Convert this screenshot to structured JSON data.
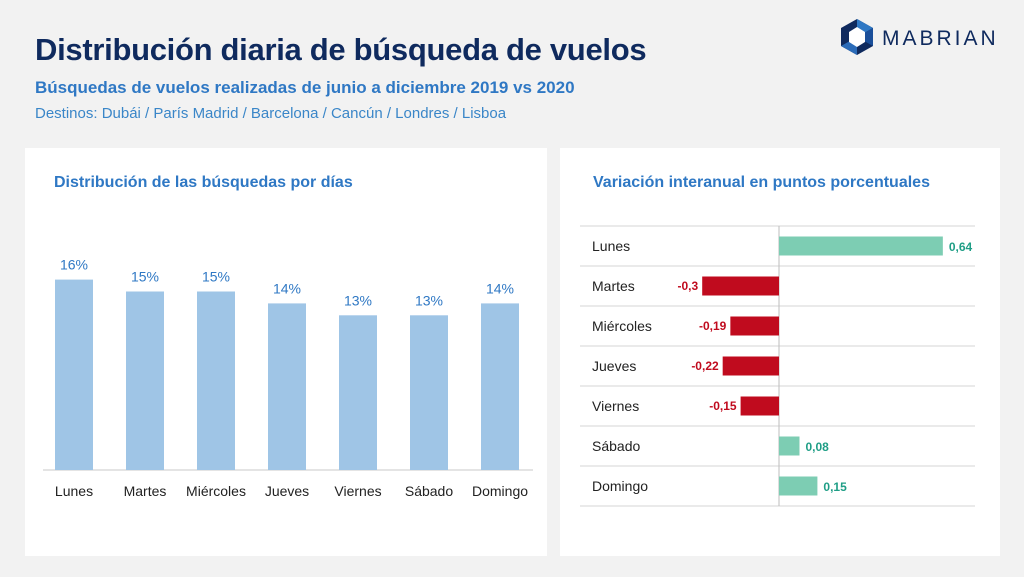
{
  "header": {
    "title": "Distribución diaria de búsqueda de vuelos",
    "subtitle": "Búsquedas de vuelos realizadas de junio a diciembre 2019 vs 2020",
    "destinations": "Destinos: Dubái / París Madrid / Barcelona / Cancún / Londres / Lisboa"
  },
  "logo": {
    "text": "MABRIAN",
    "icon": "hexagon-logo-icon"
  },
  "colors": {
    "bar": "#9fc5e6",
    "positive": "#7dcdb3",
    "negative": "#c00b1e",
    "positive_label": "#1f9e86",
    "negative_label": "#c00b1e"
  },
  "chart_data": [
    {
      "type": "bar",
      "title": "Distribución de las búsquedas por días",
      "categories": [
        "Lunes",
        "Martes",
        "Miércoles",
        "Jueves",
        "Viernes",
        "Sábado",
        "Domingo"
      ],
      "values": [
        16,
        15,
        15,
        14,
        13,
        13,
        14
      ],
      "data_labels": [
        "16%",
        "15%",
        "15%",
        "14%",
        "13%",
        "13%",
        "14%"
      ],
      "unit": "%",
      "ylim": [
        0,
        16
      ],
      "grid": false
    },
    {
      "type": "bar",
      "orientation": "horizontal",
      "title": "Variación interanual en puntos porcentuales",
      "categories": [
        "Lunes",
        "Martes",
        "Miércoles",
        "Jueves",
        "Viernes",
        "Sábado",
        "Domingo"
      ],
      "values": [
        0.64,
        -0.3,
        -0.19,
        -0.22,
        -0.15,
        0.08,
        0.15
      ],
      "data_labels": [
        "0,64",
        "-0,3",
        "-0,19",
        "-0,22",
        "-0,15",
        "0,08",
        "0,15"
      ],
      "xlim": [
        -0.3,
        0.64
      ],
      "grid": false
    }
  ]
}
